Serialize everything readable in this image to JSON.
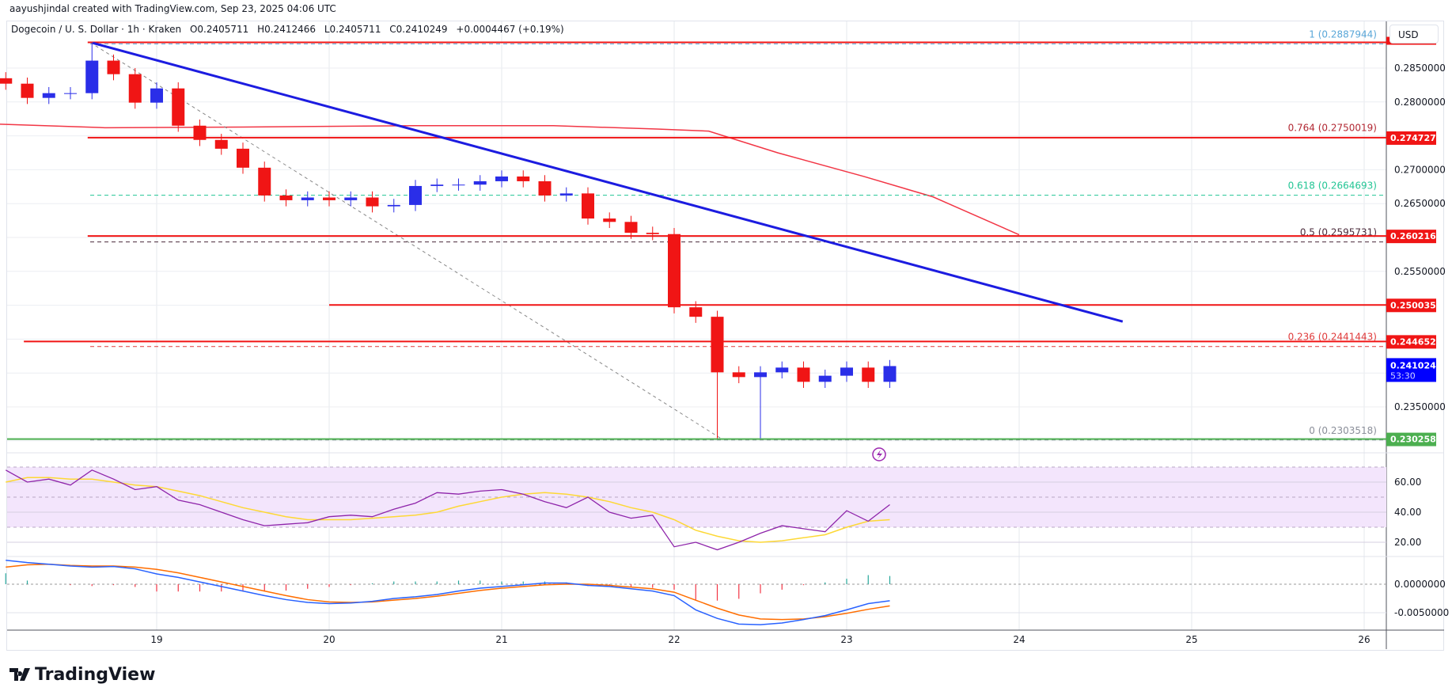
{
  "credit": "aayushjindal created with TradingView.com, Sep 23, 2025 04:06 UTC",
  "legend": {
    "symbol": "Dogecoin / U. S. Dollar · 1h · Kraken",
    "open": "O0.2405711",
    "high": "H0.2412466",
    "low": "L0.2405711",
    "close": "C0.2410249",
    "change": "+0.0004467 (+0.19%)"
  },
  "currency_button": "USD",
  "brand": "TradingView",
  "colors": {
    "up": "#2a2ee8",
    "down": "#f01515",
    "trendline": "#1c1ce0",
    "ma": "#f23645",
    "rsi": "#8e24aa",
    "rsi_ma": "#fdd835",
    "macd": "#2962ff",
    "signal": "#ff6d00",
    "support": "#4caf50",
    "current": "#0000ff"
  },
  "chart_data": [
    {
      "type": "candlestick",
      "title": "Dogecoin / U. S. Dollar · 1h · Kraken",
      "x_ticks": [
        "19",
        "20",
        "21",
        "22",
        "23",
        "24",
        "25",
        "26"
      ],
      "y_ticks": [
        "0.2850000",
        "0.2800000",
        "0.2700000",
        "0.2650000",
        "0.2550000",
        "0.2350000"
      ],
      "ylim": [
        0.226,
        0.2925
      ],
      "interval_hours": 3,
      "start": "Sep 18 03:00",
      "closes": [
        0.2827,
        0.2806,
        0.2813,
        0.2813,
        0.2861,
        0.2841,
        0.2799,
        0.282,
        0.2765,
        0.2744,
        0.2731,
        0.2703,
        0.2662,
        0.2655,
        0.2659,
        0.2655,
        0.2659,
        0.2646,
        0.2648,
        0.2676,
        0.2678,
        0.2678,
        0.2683,
        0.269,
        0.2683,
        0.2662,
        0.2665,
        0.2628,
        0.2623,
        0.2607,
        0.2605,
        0.2497,
        0.2483,
        0.2401,
        0.2394,
        0.2401,
        0.2408,
        0.2387,
        0.2396,
        0.2408,
        0.2387,
        0.2410249
      ],
      "notable_high": 0.2887944,
      "notable_low": 0.2303518,
      "price_labels": [
        {
          "value": "0.2747279",
          "price": 0.2747279,
          "color": "#f01515"
        },
        {
          "value": "0.2602167",
          "price": 0.2602167,
          "color": "#f01515"
        },
        {
          "value": "0.2500355",
          "price": 0.2500355,
          "color": "#f01515"
        },
        {
          "value": "0.2446523",
          "price": 0.2446523,
          "color": "#f01515"
        },
        {
          "value": "0.2302582",
          "price": 0.2302582,
          "color": "#4caf50"
        }
      ],
      "current_price": {
        "value": "0.2410249",
        "countdown": "53:30",
        "price": 0.2410249
      },
      "horizontal_lines": [
        {
          "price": 0.2887944,
          "from_day": 18.6,
          "color": "#f01515"
        },
        {
          "price": 0.2747279,
          "from_day": 18.6,
          "color": "#f01515"
        },
        {
          "price": 0.2602167,
          "from_day": 18.6,
          "color": "#f01515"
        },
        {
          "price": 0.2500355,
          "from_day": 20.0,
          "color": "#f01515"
        },
        {
          "price": 0.2446523,
          "from_day": 18.23,
          "color": "#f01515"
        },
        {
          "price": 0.2302582,
          "from_day": 18.0,
          "color": "#4caf50"
        }
      ],
      "fib_levels": [
        {
          "label": "1 (0.2887944)",
          "price": 0.2887944,
          "color": "#5aa7d8"
        },
        {
          "label": "0.764 (0.2750019)",
          "price": 0.2750019,
          "color": "#b22833"
        },
        {
          "label": "0.618 (0.2664693)",
          "price": 0.2664693,
          "color": "#22c594"
        },
        {
          "label": "0.5 (0.2595731)",
          "price": 0.2595731,
          "color": "#4a2a3a"
        },
        {
          "label": "0.236 (0.2441443)",
          "price": 0.2441443,
          "color": "#e03b3b"
        },
        {
          "label": "0 (0.2303518)",
          "price": 0.2303518,
          "color": "#8a8e99"
        }
      ],
      "trendline": {
        "start": {
          "day": 18.63,
          "price": 0.2887
        },
        "end": {
          "day": 24.6,
          "price": 0.2476
        }
      },
      "moving_average": [
        [
          18.0,
          0.2768
        ],
        [
          18.7,
          0.2762
        ],
        [
          19.5,
          0.2763
        ],
        [
          20.5,
          0.2765
        ],
        [
          21.3,
          0.2765
        ],
        [
          21.9,
          0.276
        ],
        [
          22.2,
          0.2757
        ],
        [
          22.6,
          0.2725
        ],
        [
          23.1,
          0.269
        ],
        [
          23.5,
          0.266
        ],
        [
          24.0,
          0.2604
        ]
      ]
    },
    {
      "type": "line",
      "name": "RSI",
      "y_ticks": [
        "60.00",
        "40.00",
        "20.00"
      ],
      "band": [
        30,
        70
      ],
      "series": [
        {
          "values": [
            68,
            60,
            62,
            58,
            68,
            62,
            55,
            57,
            48,
            45,
            40,
            35,
            31,
            32,
            33,
            37,
            38,
            37,
            42,
            46,
            53,
            52,
            54,
            55,
            52,
            47,
            43,
            50,
            40,
            36,
            38,
            17,
            20,
            15,
            20,
            26,
            31,
            29,
            27,
            41,
            34,
            45
          ]
        },
        {
          "values": [
            60,
            63,
            63,
            62,
            62,
            60,
            58,
            57,
            54,
            51,
            47,
            43,
            40,
            37,
            35,
            35,
            35,
            36,
            37,
            38,
            40,
            44,
            47,
            50,
            52,
            53,
            52,
            50,
            47,
            43,
            40,
            35,
            28,
            24,
            21,
            20,
            21,
            23,
            25,
            30,
            34,
            35
          ]
        }
      ]
    },
    {
      "type": "line",
      "name": "MACD",
      "y_ticks": [
        "0.0000000",
        "-0.0050000"
      ],
      "series": [
        {
          "values": [
            0.0042,
            0.0038,
            0.0035,
            0.0032,
            0.003,
            0.0031,
            0.0027,
            0.0018,
            0.0012,
            0.0004,
            -0.0004,
            -0.0012,
            -0.002,
            -0.0027,
            -0.0032,
            -0.0034,
            -0.0033,
            -0.003,
            -0.0025,
            -0.0022,
            -0.0018,
            -0.0012,
            -0.0007,
            -0.0004,
            -0.0001,
            0.0002,
            0.0002,
            -0.0002,
            -0.0004,
            -0.0008,
            -0.0012,
            -0.002,
            -0.0045,
            -0.006,
            -0.007,
            -0.0071,
            -0.0068,
            -0.0062,
            -0.0055,
            -0.0045,
            -0.0034,
            -0.0029
          ]
        },
        {
          "values": [
            0.003,
            0.0034,
            0.0035,
            0.0033,
            0.0032,
            0.0032,
            0.003,
            0.0026,
            0.002,
            0.0012,
            0.0004,
            -0.0004,
            -0.0012,
            -0.002,
            -0.0027,
            -0.0031,
            -0.0032,
            -0.0031,
            -0.0028,
            -0.0025,
            -0.0021,
            -0.0016,
            -0.0011,
            -0.0007,
            -0.0004,
            -0.0001,
            0.0,
            0.0,
            -0.0002,
            -0.0005,
            -0.0008,
            -0.0014,
            -0.0028,
            -0.0042,
            -0.0054,
            -0.0061,
            -0.0062,
            -0.0061,
            -0.0057,
            -0.0051,
            -0.0044,
            -0.0038
          ]
        }
      ]
    }
  ]
}
